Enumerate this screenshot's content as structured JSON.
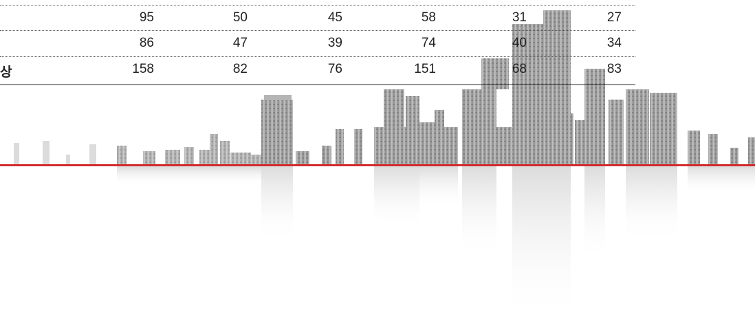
{
  "table": {
    "rows": [
      {
        "label": "",
        "values": [
          "95",
          "50",
          "45",
          "58",
          "31",
          "27"
        ]
      },
      {
        "label": "",
        "values": [
          "86",
          "47",
          "39",
          "74",
          "40",
          "34"
        ]
      },
      {
        "label": "상",
        "values": [
          "158",
          "82",
          "76",
          "151",
          "68",
          "83"
        ]
      }
    ]
  },
  "colors": {
    "divider_red": "#d12b2b",
    "building_gray": "#9a9a9a",
    "reflection_gray": "#e6e6e6"
  }
}
